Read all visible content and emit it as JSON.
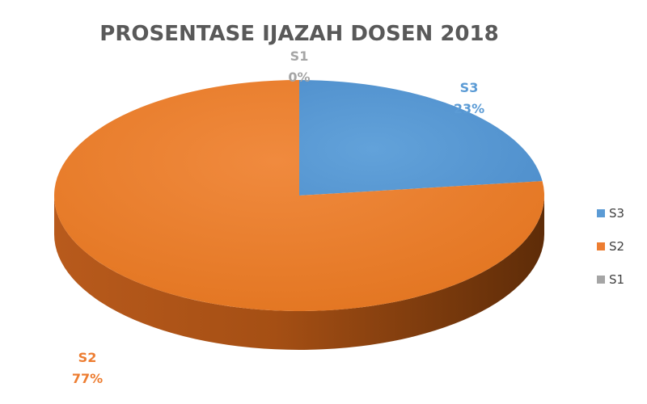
{
  "chart_data": {
    "type": "pie",
    "title": "PROSENTASE IJAZAH DOSEN 2018",
    "series": [
      {
        "name": "S3",
        "value": 23,
        "label": "23%",
        "color": "#5b9bd5"
      },
      {
        "name": "S2",
        "value": 77,
        "label": "77%",
        "color": "#ed7d31"
      },
      {
        "name": "S1",
        "value": 0,
        "label": "0%",
        "color": "#a5a5a5"
      }
    ],
    "legend": {
      "position": "right",
      "entries": [
        "S3",
        "S2",
        "S1"
      ]
    },
    "style": "3d"
  }
}
